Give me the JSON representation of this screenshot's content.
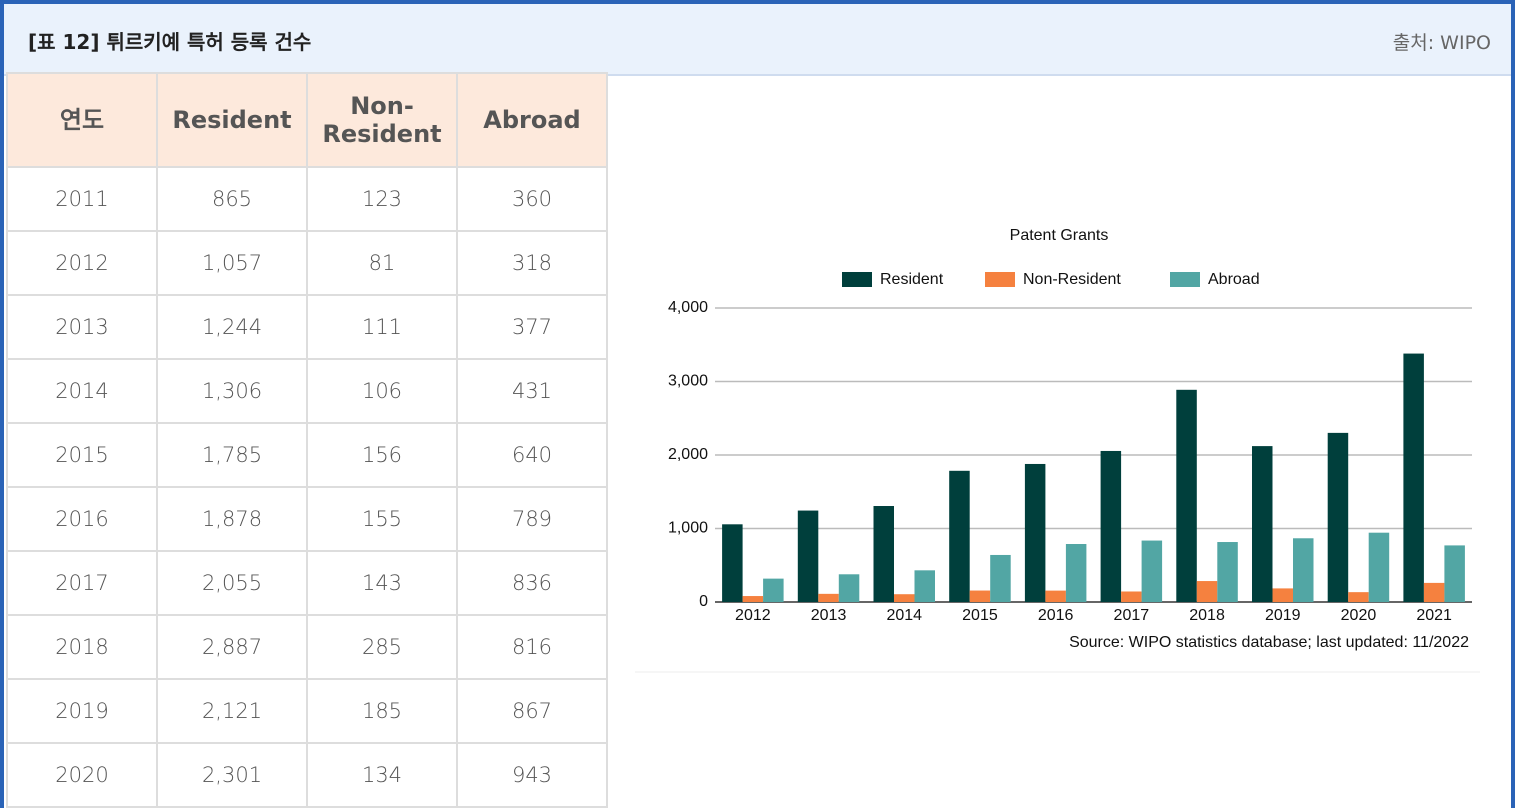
{
  "header": {
    "title": "[표 12] 튀르키예 특허 등록 건수",
    "source": "출처: WIPO"
  },
  "table": {
    "columns": [
      "연도",
      "Resident",
      "Non-Resident",
      "Abroad"
    ],
    "rows": [
      [
        "2011",
        "865",
        "123",
        "360"
      ],
      [
        "2012",
        "1,057",
        "81",
        "318"
      ],
      [
        "2013",
        "1,244",
        "111",
        "377"
      ],
      [
        "2014",
        "1,306",
        "106",
        "431"
      ],
      [
        "2015",
        "1,785",
        "156",
        "640"
      ],
      [
        "2016",
        "1,878",
        "155",
        "789"
      ],
      [
        "2017",
        "2,055",
        "143",
        "836"
      ],
      [
        "2018",
        "2,887",
        "285",
        "816"
      ],
      [
        "2019",
        "2,121",
        "185",
        "867"
      ],
      [
        "2020",
        "2,301",
        "134",
        "943"
      ]
    ]
  },
  "chart_data": {
    "type": "bar",
    "title": "Patent Grants",
    "source": "Source: WIPO statistics database; last updated: 11/2022",
    "categories": [
      "2012",
      "2013",
      "2014",
      "2015",
      "2016",
      "2017",
      "2018",
      "2019",
      "2020",
      "2021"
    ],
    "series": [
      {
        "name": "Resident",
        "color": "#003f3c",
        "values": [
          1057,
          1244,
          1306,
          1785,
          1878,
          2055,
          2887,
          2121,
          2301,
          3380
        ]
      },
      {
        "name": "Non-Resident",
        "color": "#f5813f",
        "values": [
          81,
          111,
          106,
          156,
          155,
          143,
          285,
          185,
          134,
          260
        ]
      },
      {
        "name": "Abroad",
        "color": "#52a6a4",
        "values": [
          318,
          377,
          431,
          640,
          789,
          836,
          816,
          867,
          943,
          770
        ]
      }
    ],
    "ylim": [
      0,
      4000
    ],
    "yticks": [
      0,
      {
        "value": 1000,
        "label": "1,000"
      },
      {
        "value": 2000,
        "label": "2,000"
      },
      {
        "value": 3000,
        "label": "3,000"
      },
      {
        "value": 4000,
        "label": "4,000"
      }
    ],
    "grid": true,
    "legend": "top"
  }
}
